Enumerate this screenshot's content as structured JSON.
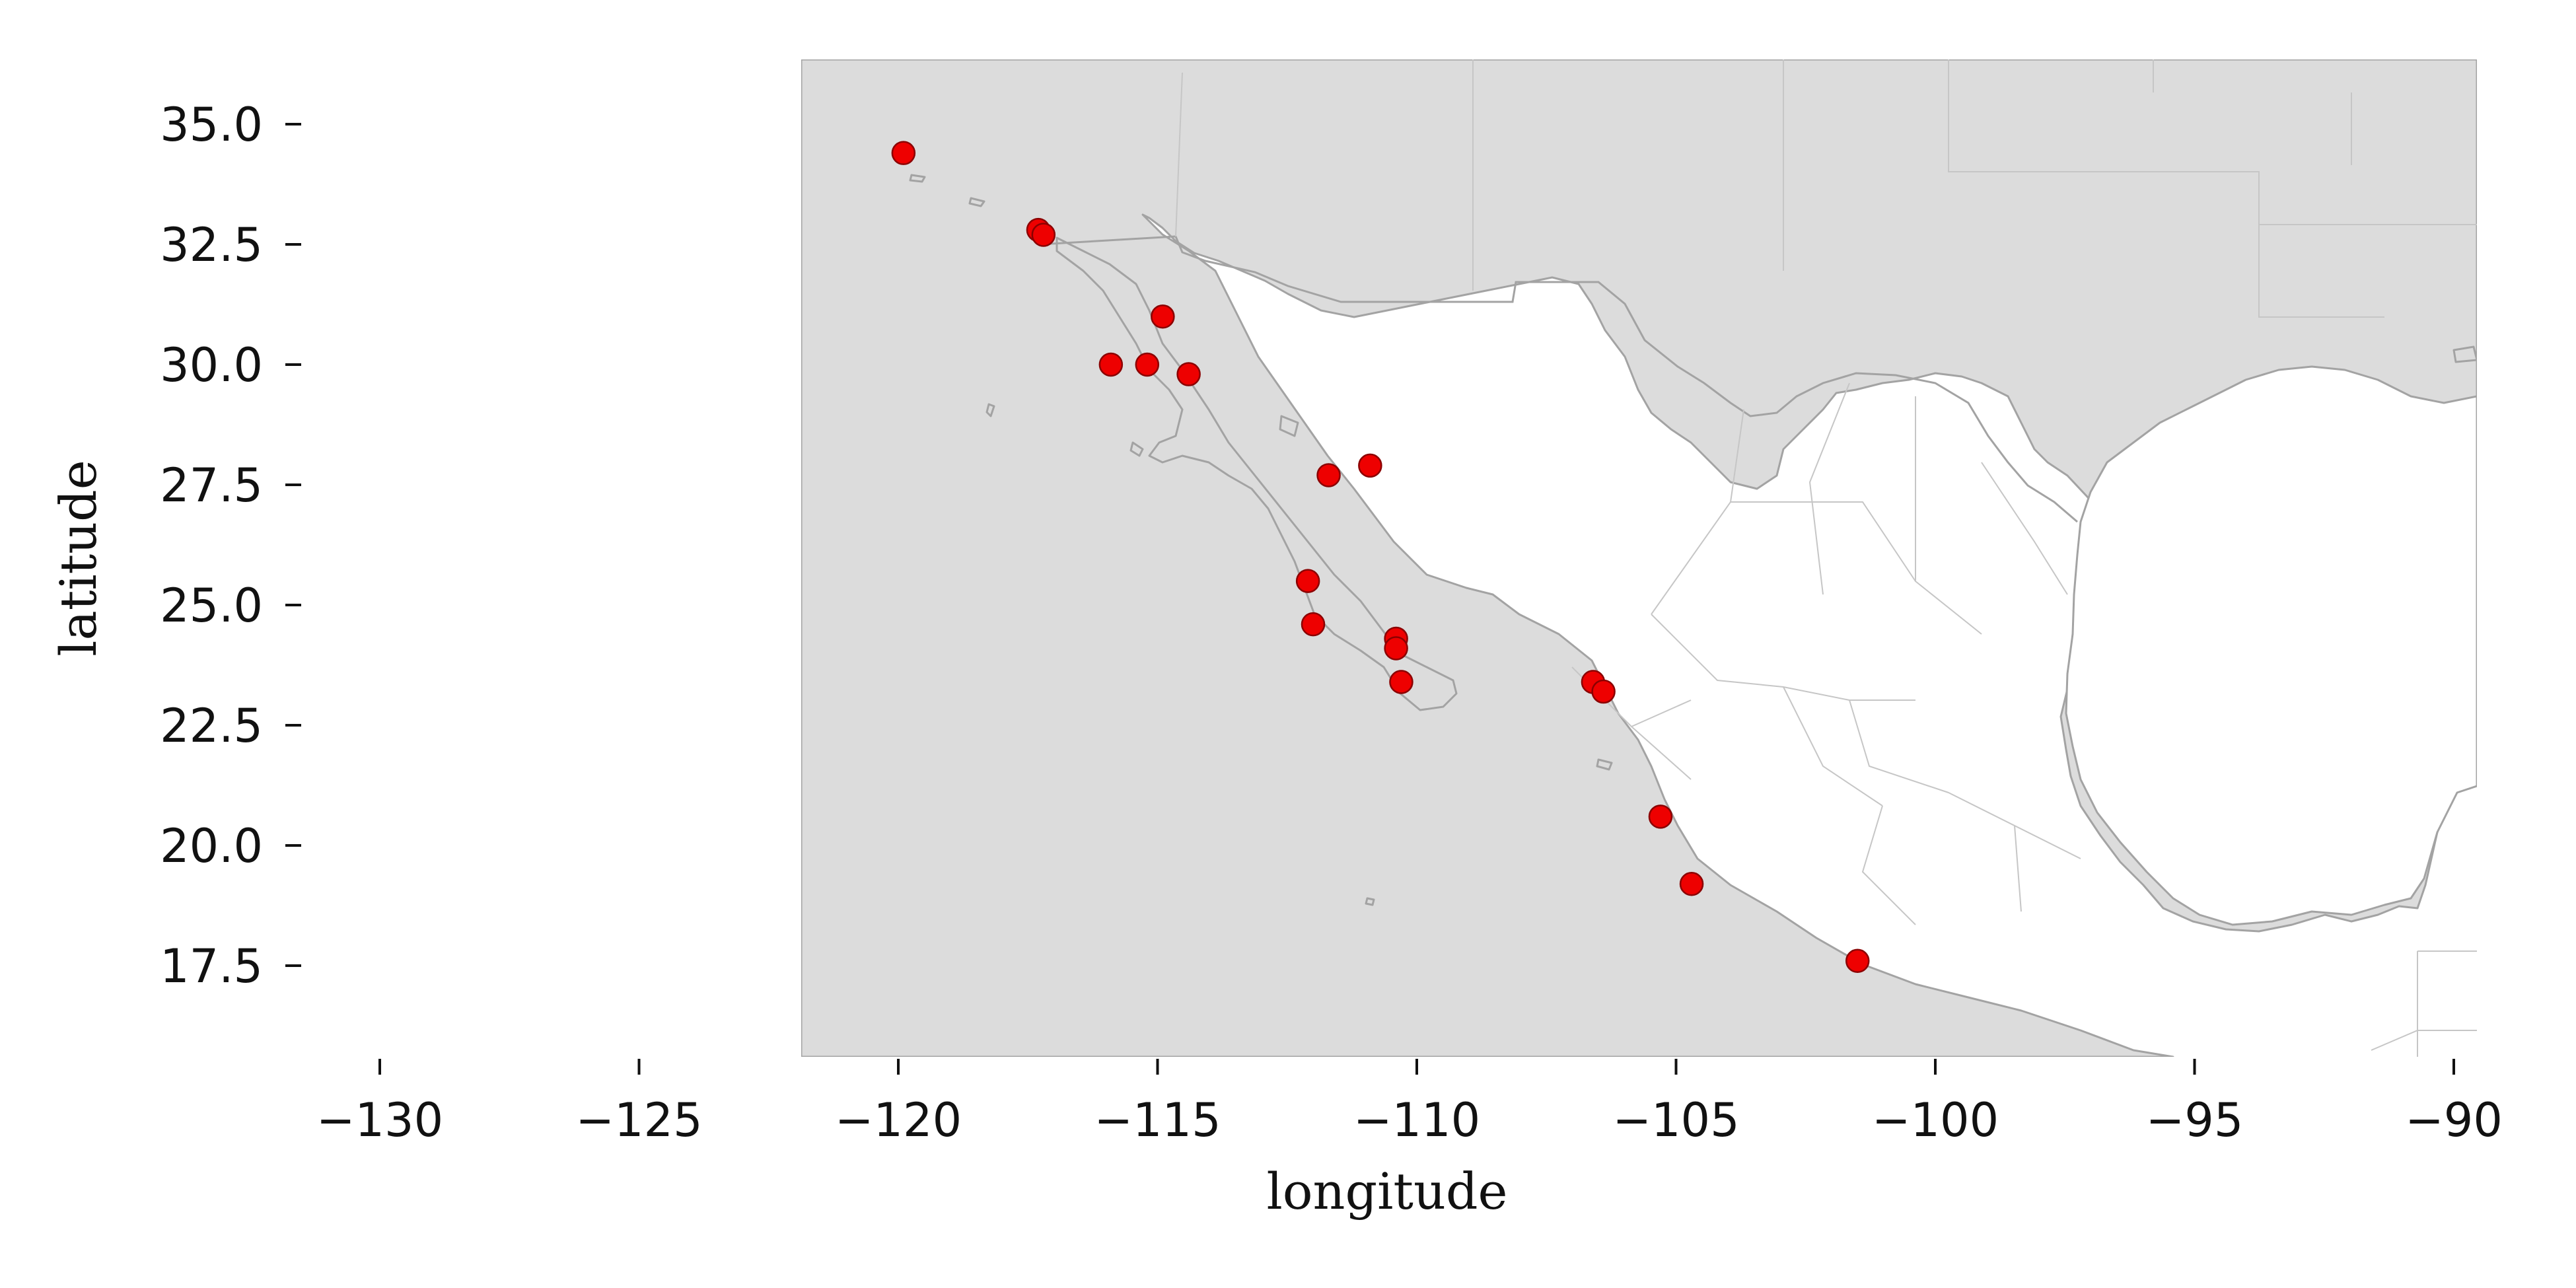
{
  "chart_data": {
    "type": "scatter",
    "title": "",
    "xlabel": "longitude",
    "ylabel": "latitude",
    "xlim": [
      -130,
      -90
    ],
    "ylim": [
      15.7,
      36.5
    ],
    "x_ticks": [
      -130,
      -125,
      -120,
      -115,
      -110,
      -105,
      -100,
      -95,
      -90
    ],
    "y_ticks": [
      17.5,
      20.0,
      22.5,
      25.0,
      27.5,
      30.0,
      32.5,
      35.0
    ],
    "x_tick_labels": [
      "−130",
      "−125",
      "−120",
      "−115",
      "−110",
      "−105",
      "−100",
      "−95",
      "−90"
    ],
    "y_tick_labels": [
      "17.5",
      "20.0",
      "22.5",
      "25.0",
      "27.5",
      "30.0",
      "32.5",
      "35.0"
    ],
    "grid": false,
    "point_color": "#ee0000",
    "land_color": "#dcdcdc",
    "border_color": "#a3a3a3",
    "points": [
      {
        "x": -119.9,
        "y": 34.4
      },
      {
        "x": -117.3,
        "y": 32.8
      },
      {
        "x": -117.2,
        "y": 32.7
      },
      {
        "x": -114.9,
        "y": 31.0
      },
      {
        "x": -115.9,
        "y": 30.0
      },
      {
        "x": -115.2,
        "y": 30.0
      },
      {
        "x": -114.4,
        "y": 29.8
      },
      {
        "x": -110.9,
        "y": 27.9
      },
      {
        "x": -111.7,
        "y": 27.7
      },
      {
        "x": -112.1,
        "y": 25.5
      },
      {
        "x": -112.0,
        "y": 24.6
      },
      {
        "x": -110.4,
        "y": 24.3
      },
      {
        "x": -110.4,
        "y": 24.1
      },
      {
        "x": -110.3,
        "y": 23.4
      },
      {
        "x": -106.6,
        "y": 23.4
      },
      {
        "x": -106.4,
        "y": 23.2
      },
      {
        "x": -105.3,
        "y": 20.6
      },
      {
        "x": -104.7,
        "y": 19.2
      },
      {
        "x": -101.5,
        "y": 17.6
      }
    ]
  }
}
